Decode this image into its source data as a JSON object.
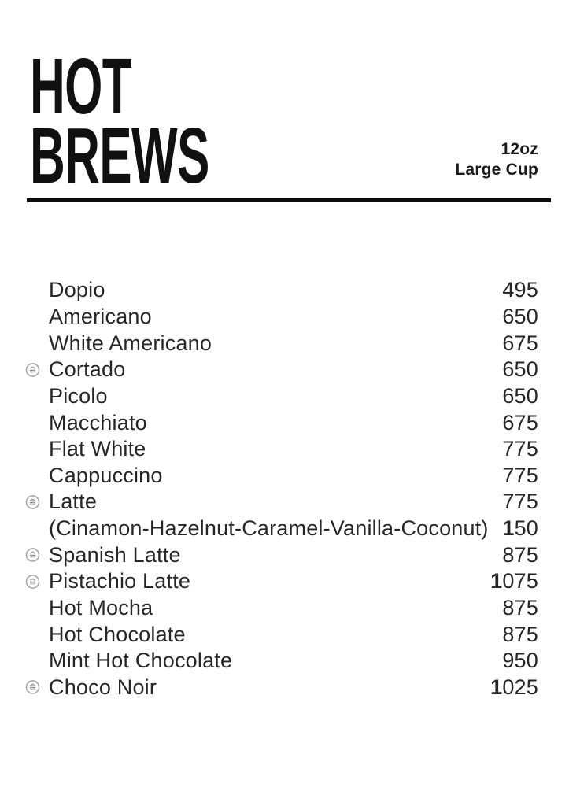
{
  "header": {
    "title_line1": "HOT",
    "title_line2": "BREWS",
    "size_label": "12oz",
    "cup_label": "Large Cup"
  },
  "menu": {
    "badge_icon": "signature-badge-icon",
    "items": [
      {
        "name": "Dopio",
        "price": "495",
        "badge": false,
        "note": false
      },
      {
        "name": "Americano",
        "price": "650",
        "badge": false,
        "note": false
      },
      {
        "name": "White Americano",
        "price": "675",
        "badge": false,
        "note": false
      },
      {
        "name": "Cortado",
        "price": "650",
        "badge": true,
        "note": false
      },
      {
        "name": "Picolo",
        "price": "650",
        "badge": false,
        "note": false
      },
      {
        "name": "Macchiato",
        "price": "675",
        "badge": false,
        "note": false
      },
      {
        "name": "Flat White",
        "price": "775",
        "badge": false,
        "note": false
      },
      {
        "name": "Cappuccino",
        "price": "775",
        "badge": false,
        "note": false
      },
      {
        "name": "Latte",
        "price": "775",
        "badge": true,
        "note": false
      },
      {
        "name": "(Cinamon-Hazelnut-Caramel-Vanilla-Coconut)",
        "price": "150",
        "badge": false,
        "note": true
      },
      {
        "name": "Spanish Latte",
        "price": "875",
        "badge": true,
        "note": false
      },
      {
        "name": "Pistachio Latte",
        "price": "1075",
        "badge": true,
        "note": false
      },
      {
        "name": "Hot Mocha",
        "price": "875",
        "badge": false,
        "note": false
      },
      {
        "name": "Hot Chocolate",
        "price": "875",
        "badge": false,
        "note": false
      },
      {
        "name": "Mint Hot Chocolate",
        "price": "950",
        "badge": false,
        "note": false
      },
      {
        "name": "Choco Noir",
        "price": "1025",
        "badge": true,
        "note": false
      }
    ]
  },
  "colors": {
    "title": "#111111",
    "text": "#262626",
    "divider": "#0c0c0c",
    "badge_gray": "#a7a7a7"
  }
}
